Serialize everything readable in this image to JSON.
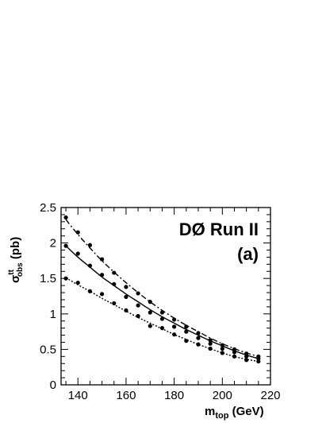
{
  "chart_data": {
    "type": "line",
    "title": "",
    "xlabel": {
      "main": "m",
      "sub": "top",
      "unit": " (GeV)"
    },
    "ylabel": {
      "main": "σ",
      "sup": "tt",
      "sub": "obs",
      "unit": " (pb)"
    },
    "xlim": [
      133,
      220
    ],
    "ylim": [
      0,
      2.5
    ],
    "x_ticks": [
      140,
      160,
      180,
      200,
      220
    ],
    "y_ticks": [
      0,
      0.5,
      1,
      1.5,
      2,
      2.5
    ],
    "y_tick_labels": [
      "0",
      "0.5",
      "1",
      "1.5",
      "2",
      "2.5"
    ],
    "grid": false,
    "annotations": [
      "DØ Run II",
      "(a)"
    ],
    "series": [
      {
        "style": "dash-dot",
        "x": [
          135,
          140,
          145,
          150,
          155,
          160,
          165,
          170,
          175,
          180,
          185,
          190,
          195,
          200,
          205,
          210,
          215
        ],
        "y": [
          2.36,
          2.15,
          1.97,
          1.77,
          1.58,
          1.38,
          1.29,
          1.17,
          1.02,
          0.92,
          0.82,
          0.73,
          0.63,
          0.56,
          0.5,
          0.44,
          0.4
        ],
        "fit": [
          2.33,
          2.12,
          1.93,
          1.75,
          1.59,
          1.44,
          1.3,
          1.17,
          1.05,
          0.94,
          0.84,
          0.75,
          0.66,
          0.58,
          0.51,
          0.45,
          0.4
        ]
      },
      {
        "style": "solid",
        "x": [
          135,
          140,
          145,
          150,
          155,
          160,
          165,
          170,
          175,
          180,
          185,
          190,
          195,
          200,
          205,
          210,
          215
        ],
        "y": [
          1.96,
          1.85,
          1.68,
          1.55,
          1.42,
          1.24,
          1.12,
          1.02,
          0.93,
          0.82,
          0.75,
          0.66,
          0.58,
          0.51,
          0.46,
          0.4,
          0.37
        ],
        "fit": [
          1.96,
          1.8,
          1.66,
          1.52,
          1.4,
          1.28,
          1.17,
          1.06,
          0.96,
          0.87,
          0.78,
          0.7,
          0.62,
          0.55,
          0.48,
          0.42,
          0.37
        ]
      },
      {
        "style": "dotted",
        "x": [
          135,
          140,
          145,
          150,
          155,
          160,
          165,
          170,
          175,
          180,
          185,
          190,
          195,
          200,
          205,
          210,
          215
        ],
        "y": [
          1.5,
          1.44,
          1.32,
          1.28,
          1.15,
          1.05,
          0.97,
          0.83,
          0.8,
          0.71,
          0.62,
          0.57,
          0.51,
          0.45,
          0.4,
          0.35,
          0.33
        ],
        "fit": [
          1.51,
          1.41,
          1.32,
          1.22,
          1.13,
          1.04,
          0.95,
          0.87,
          0.79,
          0.71,
          0.64,
          0.57,
          0.51,
          0.45,
          0.4,
          0.36,
          0.33
        ]
      }
    ]
  }
}
